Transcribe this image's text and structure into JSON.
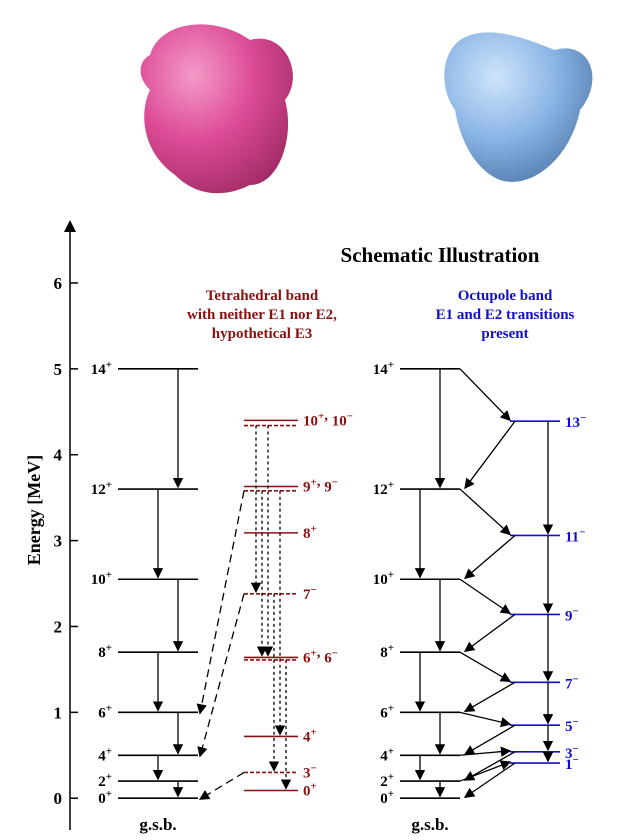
{
  "title": "Schematic Illustration",
  "axis": {
    "label": "Energy [MeV]",
    "ylim": [
      -0.37,
      6.71
    ],
    "yticks": [
      0,
      1,
      2,
      3,
      4,
      5,
      6
    ]
  },
  "gsb_label": "g.s.b.",
  "left_gsb": [
    {
      "spin": "0",
      "parity": "+",
      "energy": 0
    },
    {
      "spin": "2",
      "parity": "+",
      "energy": 0.2
    },
    {
      "spin": "4",
      "parity": "+",
      "energy": 0.5
    },
    {
      "spin": "6",
      "parity": "+",
      "energy": 1.0
    },
    {
      "spin": "8",
      "parity": "+",
      "energy": 1.7
    },
    {
      "spin": "10",
      "parity": "+",
      "energy": 2.55
    },
    {
      "spin": "12",
      "parity": "+",
      "energy": 3.6
    },
    {
      "spin": "14",
      "parity": "+",
      "energy": 5.0
    }
  ],
  "tetrahedral": {
    "heading": [
      "Tetrahedral band",
      "with neither E1 nor E2,",
      "hypothetical E3"
    ],
    "separator": ", ",
    "levels": [
      {
        "states": [
          {
            "spin": "0",
            "parity": "+",
            "energy": 0.09
          }
        ]
      },
      {
        "states": [
          {
            "spin": "3",
            "parity": "−",
            "energy": 0.3
          }
        ]
      },
      {
        "states": [
          {
            "spin": "4",
            "parity": "+",
            "energy": 0.72
          }
        ]
      },
      {
        "states": [
          {
            "spin": "6",
            "parity": "+",
            "energy": 1.64
          },
          {
            "spin": "6",
            "parity": "−",
            "energy": 1.61
          }
        ]
      },
      {
        "states": [
          {
            "spin": "7",
            "parity": "−",
            "energy": 2.38
          }
        ]
      },
      {
        "states": [
          {
            "spin": "8",
            "parity": "+",
            "energy": 3.09
          }
        ]
      },
      {
        "states": [
          {
            "spin": "9",
            "parity": "+",
            "energy": 3.63
          },
          {
            "spin": "9",
            "parity": "−",
            "energy": 3.58
          }
        ]
      },
      {
        "states": [
          {
            "spin": "10",
            "parity": "+",
            "energy": 4.4
          },
          {
            "spin": "10",
            "parity": "−",
            "energy": 4.34
          }
        ]
      }
    ]
  },
  "octupole": {
    "heading": [
      "Octupole band",
      "E1 and E2 transitions",
      "present"
    ],
    "even": [
      {
        "spin": "0",
        "parity": "+",
        "energy": 0
      },
      {
        "spin": "2",
        "parity": "+",
        "energy": 0.2
      },
      {
        "spin": "4",
        "parity": "+",
        "energy": 0.5
      },
      {
        "spin": "6",
        "parity": "+",
        "energy": 1.0
      },
      {
        "spin": "8",
        "parity": "+",
        "energy": 1.7
      },
      {
        "spin": "10",
        "parity": "+",
        "energy": 2.55
      },
      {
        "spin": "12",
        "parity": "+",
        "energy": 3.6
      },
      {
        "spin": "14",
        "parity": "+",
        "energy": 5.0
      }
    ],
    "odd": [
      {
        "spin": "1",
        "parity": "−",
        "energy": 0.41
      },
      {
        "spin": "3",
        "parity": "−",
        "energy": 0.54
      },
      {
        "spin": "5",
        "parity": "−",
        "energy": 0.85
      },
      {
        "spin": "7",
        "parity": "−",
        "energy": 1.35
      },
      {
        "spin": "9",
        "parity": "−",
        "energy": 2.14
      },
      {
        "spin": "11",
        "parity": "−",
        "energy": 3.06
      },
      {
        "spin": "13",
        "parity": "−",
        "energy": 4.39
      }
    ]
  }
}
